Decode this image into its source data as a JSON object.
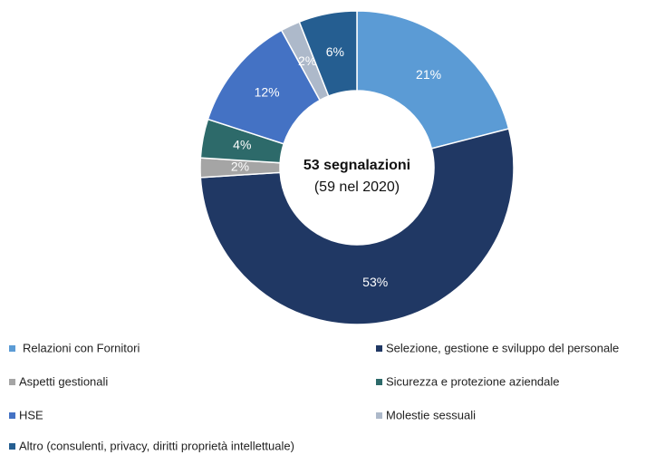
{
  "chart_data": {
    "type": "donut",
    "center_title": "53 segnalazioni",
    "center_subtitle": "(59 nel 2020)",
    "categories": [
      "Relazioni con Fornitori",
      "Selezione, gestione e sviluppo del personale",
      "Aspetti gestionali",
      "Sicurezza e protezione aziendale",
      "HSE",
      "Molestie sessuali",
      "Altro (consulenti, privacy, diritti proprietà intellettuale)"
    ],
    "values": [
      21,
      53,
      2,
      4,
      12,
      2,
      6
    ],
    "value_labels": [
      "21%",
      "53%",
      "2%",
      "4%",
      "12%",
      "2%",
      "6%"
    ],
    "colors": [
      "#5B9BD5",
      "#203864",
      "#A5A5A5",
      "#2D6A6A",
      "#4472C4",
      "#ADB9CA",
      "#255E91"
    ],
    "legend": "bottom"
  }
}
